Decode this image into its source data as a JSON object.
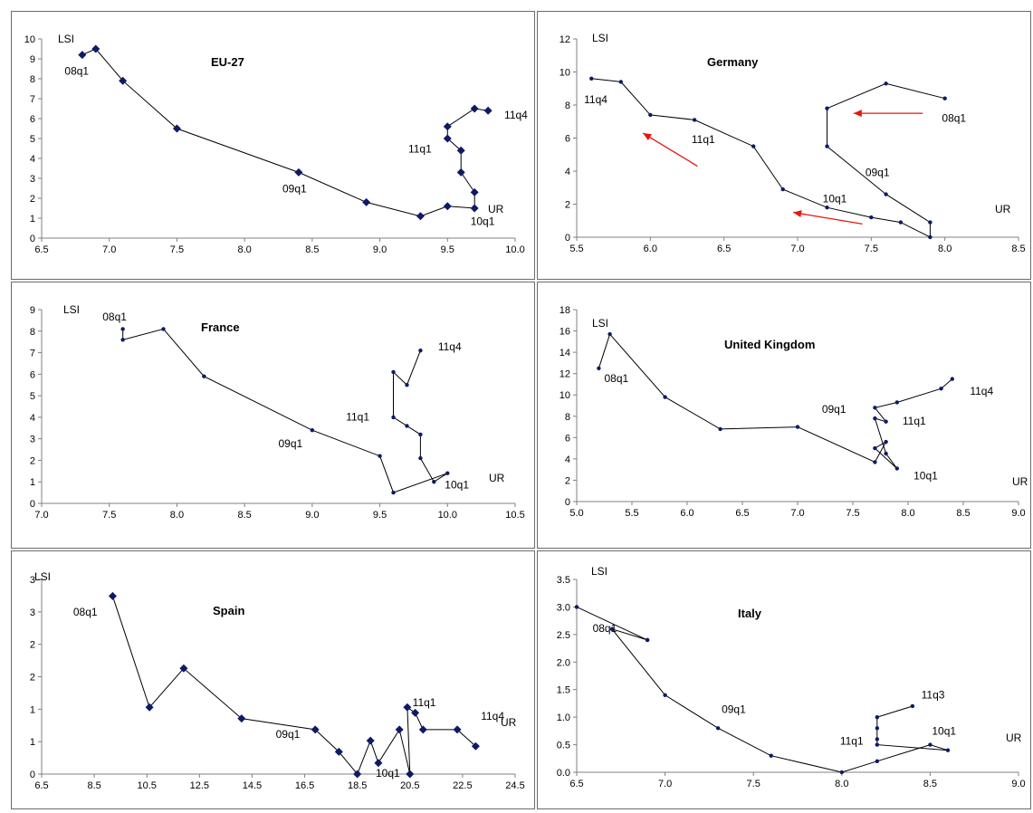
{
  "chart_data": [
    {
      "type": "line",
      "title": "EU-27",
      "xlabel": "UR",
      "ylabel": "LSI",
      "xlim": [
        6.5,
        10.0
      ],
      "ylim": [
        0,
        10
      ],
      "x_ticks": [
        "6.5",
        "7.0",
        "7.5",
        "8.0",
        "8.5",
        "9.0",
        "9.5",
        "10.0"
      ],
      "y_ticks": [
        "0",
        "1",
        "2",
        "3",
        "4",
        "5",
        "6",
        "7",
        "8",
        "9",
        "10"
      ],
      "marker": "diamond",
      "series": [
        {
          "x": [
            6.8,
            6.9,
            7.1,
            7.5,
            8.4,
            8.9,
            9.3,
            9.5,
            9.7,
            9.7,
            9.6,
            9.6,
            9.5,
            9.5,
            9.7,
            9.8
          ],
          "y": [
            9.2,
            9.5,
            7.9,
            5.5,
            3.3,
            1.8,
            1.1,
            1.6,
            1.5,
            2.3,
            3.3,
            4.4,
            5.0,
            5.6,
            6.5,
            6.4
          ]
        }
      ],
      "annotations": [
        {
          "text": "08q1",
          "x": 6.67,
          "y": 8.2
        },
        {
          "text": "09q1",
          "x": 8.28,
          "y": 2.3
        },
        {
          "text": "10q1",
          "x": 9.67,
          "y": 0.65
        },
        {
          "text": "11q1",
          "x": 9.21,
          "y": 4.3
        },
        {
          "text": "11q4",
          "x": 9.92,
          "y": 6.0
        }
      ]
    },
    {
      "type": "line",
      "title": "Germany",
      "xlabel": "UR",
      "ylabel": "LSI",
      "xlim": [
        5.5,
        8.5
      ],
      "ylim": [
        0,
        12
      ],
      "x_ticks": [
        "5.5",
        "6.0",
        "6.5",
        "7.0",
        "7.5",
        "8.0",
        "8.5"
      ],
      "y_ticks": [
        "0",
        "2",
        "4",
        "6",
        "8",
        "10",
        "12"
      ],
      "marker": "dot",
      "series": [
        {
          "x": [
            8.0,
            7.6,
            7.2,
            7.2,
            7.6,
            7.9,
            7.9,
            7.7,
            7.5,
            7.2,
            6.9,
            6.7,
            6.3,
            6.0,
            5.8,
            5.6
          ],
          "y": [
            8.4,
            9.3,
            7.8,
            5.5,
            2.6,
            0.9,
            0.0,
            0.9,
            1.2,
            1.8,
            2.9,
            5.5,
            7.1,
            7.4,
            9.4,
            9.6
          ]
        }
      ],
      "annotations": [
        {
          "text": "08q1",
          "x": 7.98,
          "y": 7.0
        },
        {
          "text": "09q1",
          "x": 7.46,
          "y": 3.7
        },
        {
          "text": "10q1",
          "x": 7.17,
          "y": 2.1
        },
        {
          "text": "11q1",
          "x": 6.28,
          "y": 5.7
        },
        {
          "text": "11q4",
          "x": 5.55,
          "y": 8.1
        }
      ],
      "arrows": [
        {
          "from": [
            7.85,
            7.5
          ],
          "to": [
            7.38,
            7.5
          ]
        },
        {
          "from": [
            6.32,
            4.3
          ],
          "to": [
            5.95,
            6.3
          ]
        },
        {
          "from": [
            7.44,
            0.8
          ],
          "to": [
            6.97,
            1.5
          ]
        }
      ]
    },
    {
      "type": "line",
      "title": "France",
      "xlabel": "UR",
      "ylabel": "LSI",
      "xlim": [
        7.0,
        10.5
      ],
      "ylim": [
        0,
        9
      ],
      "x_ticks": [
        "7.0",
        "7.5",
        "8.0",
        "8.5",
        "9.0",
        "9.5",
        "10.0",
        "10.5"
      ],
      "y_ticks": [
        "0",
        "1",
        "2",
        "3",
        "4",
        "5",
        "6",
        "7",
        "8",
        "9"
      ],
      "marker": "dot",
      "series": [
        {
          "x": [
            7.6,
            7.6,
            7.9,
            8.2,
            9.0,
            9.5,
            9.6,
            10.0,
            9.9,
            9.8,
            9.8,
            9.7,
            9.6,
            9.6,
            9.7,
            9.8
          ],
          "y": [
            8.1,
            7.6,
            8.1,
            5.9,
            3.4,
            2.2,
            0.5,
            1.4,
            1.0,
            2.1,
            3.2,
            3.6,
            4.0,
            6.1,
            5.5,
            7.1
          ]
        }
      ],
      "annotations": [
        {
          "text": "08q1",
          "x": 7.45,
          "y": 8.5
        },
        {
          "text": "09q1",
          "x": 8.75,
          "y": 2.6
        },
        {
          "text": "10q1",
          "x": 9.98,
          "y": 0.7
        },
        {
          "text": "11q1",
          "x": 9.25,
          "y": 3.85
        },
        {
          "text": "11q4",
          "x": 9.93,
          "y": 7.1
        }
      ]
    },
    {
      "type": "line",
      "title": "United Kingdom",
      "xlabel": "UR",
      "ylabel": "LSI",
      "xlim": [
        5.0,
        9.0
      ],
      "ylim": [
        0,
        18
      ],
      "x_ticks": [
        "5.0",
        "5.5",
        "6.0",
        "6.5",
        "7.0",
        "7.5",
        "8.0",
        "8.5",
        "9.0"
      ],
      "y_ticks": [
        "0",
        "2",
        "4",
        "6",
        "8",
        "10",
        "12",
        "14",
        "16",
        "18"
      ],
      "marker": "dot",
      "series": [
        {
          "x": [
            5.2,
            5.3,
            5.8,
            6.3,
            7.0,
            7.7,
            7.8,
            7.7,
            7.9,
            7.8,
            7.7,
            7.8,
            7.7,
            7.9,
            8.3,
            8.4
          ],
          "y": [
            12.5,
            15.7,
            9.8,
            6.8,
            7.0,
            3.7,
            5.6,
            5.0,
            3.1,
            4.5,
            7.8,
            7.5,
            8.8,
            9.3,
            10.6,
            11.5
          ]
        }
      ],
      "annotations": [
        {
          "text": "08q1",
          "x": 5.25,
          "y": 11.2
        },
        {
          "text": "09q1",
          "x": 7.22,
          "y": 8.3
        },
        {
          "text": "10q1",
          "x": 8.05,
          "y": 2.1
        },
        {
          "text": "11q1",
          "x": 7.95,
          "y": 7.2
        },
        {
          "text": "11q4",
          "x": 8.56,
          "y": 10.0
        }
      ]
    },
    {
      "type": "line",
      "title": "Spain",
      "xlabel": "UR",
      "ylabel": "LSI",
      "xlim": [
        6.5,
        24.5
      ],
      "ylim": [
        0,
        3.5
      ],
      "x_ticks": [
        "6.5",
        "8.5",
        "10.5",
        "12.5",
        "14.5",
        "16.5",
        "18.5",
        "20.5",
        "22.5",
        "24.5"
      ],
      "y_ticks": [
        "0",
        "1",
        "1",
        "2",
        "2",
        "3",
        "3"
      ],
      "marker": "diamond",
      "series": [
        {
          "x": [
            9.2,
            10.6,
            11.9,
            14.1,
            16.9,
            17.8,
            18.5,
            19.0,
            19.3,
            20.1,
            20.5,
            20.4,
            20.7,
            21.0,
            22.3,
            23.0
          ],
          "y": [
            3.2,
            1.2,
            1.9,
            1.0,
            0.8,
            0.4,
            0.0,
            0.6,
            0.2,
            0.8,
            0.0,
            1.2,
            1.1,
            0.8,
            0.8,
            0.5
          ]
        }
      ],
      "annotations": [
        {
          "text": "08q1",
          "x": 7.7,
          "y": 2.85
        },
        {
          "text": "09q1",
          "x": 15.4,
          "y": 0.65
        },
        {
          "text": "10q1",
          "x": 19.2,
          "y": -0.05
        },
        {
          "text": "11q1",
          "x": 20.6,
          "y": 1.22
        },
        {
          "text": "11q4",
          "x": 23.2,
          "y": 0.98
        }
      ]
    },
    {
      "type": "line",
      "title": "Italy",
      "xlabel": "UR",
      "ylabel": "LSI",
      "xlim": [
        6.5,
        9.0
      ],
      "ylim": [
        0,
        3.5
      ],
      "x_ticks": [
        "6.5",
        "7.0",
        "7.5",
        "8.0",
        "8.5",
        "9.0"
      ],
      "y_ticks": [
        "0.0",
        "0.5",
        "1.0",
        "1.5",
        "2.0",
        "2.5",
        "3.0",
        "3.5"
      ],
      "marker": "dot",
      "series": [
        {
          "x": [
            6.9,
            6.5,
            6.9,
            6.7,
            7.0,
            7.3,
            7.6,
            8.0,
            8.2,
            8.5,
            8.6,
            8.2,
            8.2,
            8.2,
            8.2,
            8.4
          ],
          "y": [
            2.4,
            3.0,
            2.4,
            2.6,
            1.4,
            0.8,
            0.3,
            0.0,
            0.2,
            0.5,
            0.4,
            0.5,
            0.6,
            0.8,
            1.0,
            1.2
          ]
        }
      ],
      "annotations": [
        {
          "text": "08q1",
          "x": 6.59,
          "y": 2.55
        },
        {
          "text": "09q1",
          "x": 7.32,
          "y": 1.08
        },
        {
          "text": "10q1",
          "x": 8.51,
          "y": 0.68
        },
        {
          "text": "11q1",
          "x": 7.99,
          "y": 0.5
        },
        {
          "text": "11q3",
          "x": 8.45,
          "y": 1.34
        }
      ]
    }
  ],
  "colors": {
    "line": "#000000",
    "marker": "#0d1a66",
    "arrow": "#e8140f",
    "axis": "#808080"
  }
}
